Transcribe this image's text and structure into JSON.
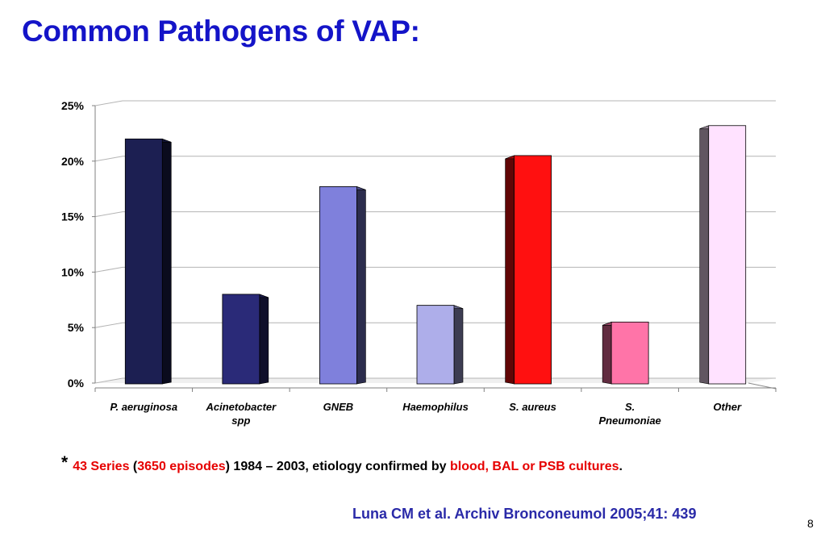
{
  "slide": {
    "title": "Common Pathogens of VAP:",
    "page_number": "8"
  },
  "footnote": {
    "asterisk": "*",
    "series": "43 Series",
    "open_paren": " (",
    "episodes": "3650 episodes",
    "years": ") 1984 – 2003,  etiology confirmed by ",
    "cultures": "blood, BAL or PSB cultures",
    "end": ".",
    "highlight_color": "#e60000"
  },
  "citation": "Luna CM et al. Archiv Bronconeumol 2005;41: 439",
  "chart_data": {
    "type": "bar",
    "title": "",
    "xlabel": "",
    "ylabel": "",
    "ylim": [
      0,
      25
    ],
    "yticks": [
      0,
      5,
      10,
      15,
      20,
      25
    ],
    "ytick_labels": [
      "0%",
      "5%",
      "10%",
      "15%",
      "20%",
      "25%"
    ],
    "categories": [
      "P. aeruginosa",
      "Acinetobacter spp",
      "GNEB",
      "Haemophilus",
      "S. aureus",
      "S. Pneumoniae",
      "Other"
    ],
    "category_lines": [
      [
        "P. aeruginosa"
      ],
      [
        "Acinetobacter",
        "spp"
      ],
      [
        "GNEB"
      ],
      [
        "Haemophilus"
      ],
      [
        "S. aureus"
      ],
      [
        "S.",
        "Pneumoniae"
      ],
      [
        "Other"
      ]
    ],
    "values": [
      22,
      8,
      17.7,
      7,
      20.5,
      5.5,
      23.2
    ],
    "colors": [
      "#1c1f52",
      "#2a2a78",
      "#7f80dc",
      "#aeaeea",
      "#ff1010",
      "#ff74a8",
      "#ffe2ff"
    ],
    "grid": true,
    "legend": "none",
    "style": "3d"
  }
}
